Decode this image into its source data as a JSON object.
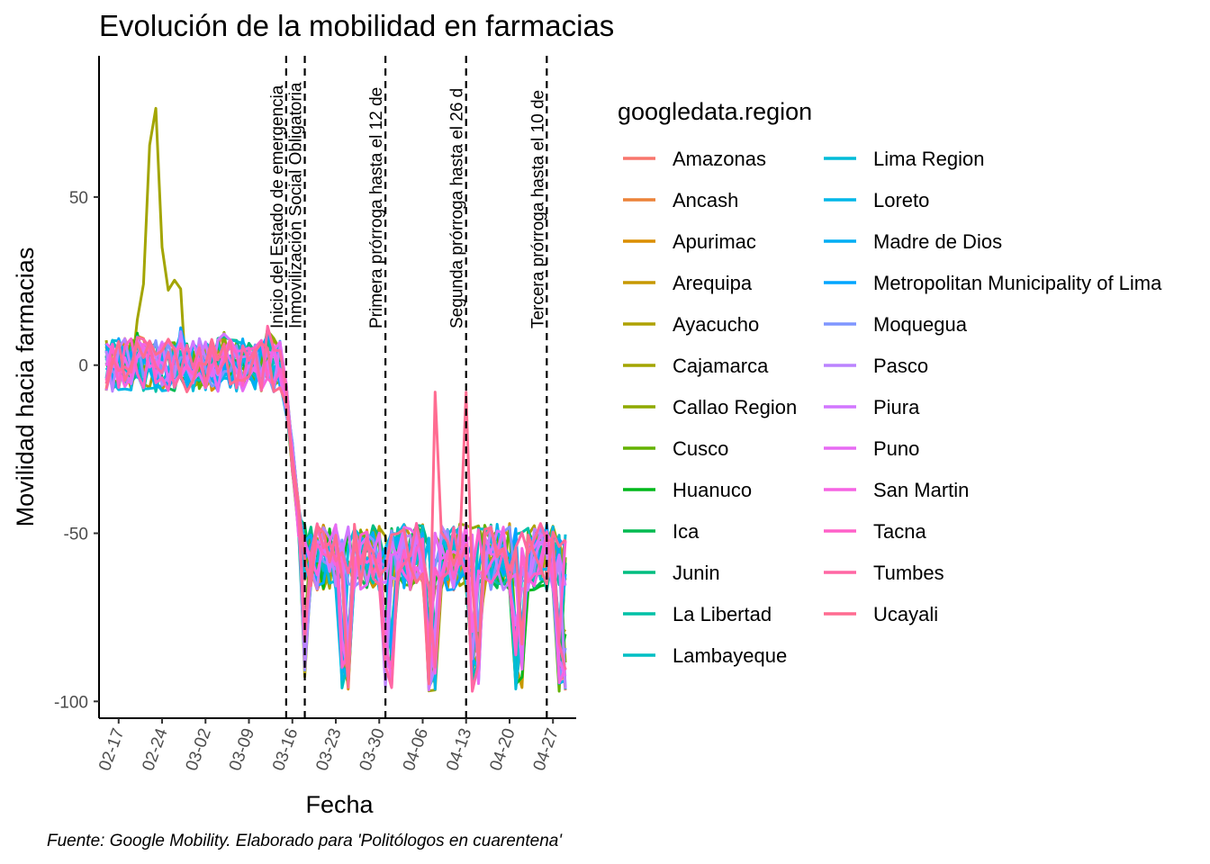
{
  "chart_data": {
    "type": "line",
    "title": "Evolución de la mobilidad en farmacias",
    "xlabel": "Fecha",
    "ylabel": "Movilidad hacia farmacias",
    "caption": "Fuente: Google Mobility. Elaborado para 'Politólogos en cuarentena'",
    "legend_title": "googledata.region",
    "legend_placement": "right",
    "grid": false,
    "x_date_range": [
      "2020-02-15",
      "2020-04-29"
    ],
    "x_ticks": [
      {
        "label": "02-17",
        "date": "2020-02-17"
      },
      {
        "label": "02-24",
        "date": "2020-02-24"
      },
      {
        "label": "03-02",
        "date": "2020-03-02"
      },
      {
        "label": "03-09",
        "date": "2020-03-09"
      },
      {
        "label": "03-16",
        "date": "2020-03-16"
      },
      {
        "label": "03-23",
        "date": "2020-03-23"
      },
      {
        "label": "03-30",
        "date": "2020-03-30"
      },
      {
        "label": "04-06",
        "date": "2020-04-06"
      },
      {
        "label": "04-13",
        "date": "2020-04-13"
      },
      {
        "label": "04-20",
        "date": "2020-04-20"
      },
      {
        "label": "04-27",
        "date": "2020-04-27"
      }
    ],
    "y_ticks": [
      50,
      0,
      -50,
      -100
    ],
    "ylim": [
      -105,
      92
    ],
    "vlines": [
      {
        "date": "2020-03-15",
        "label": "Inicio del Estado de emergencia"
      },
      {
        "date": "2020-03-18",
        "label": "Inmovilización Social Obligatoria"
      },
      {
        "date": "2020-03-31",
        "label": "Primera prórroga hasta el 12 de"
      },
      {
        "date": "2020-04-13",
        "label": "Segunda prórroga hasta el 26 d"
      },
      {
        "date": "2020-04-26",
        "label": "Tercera prórroga hasta el 10 de"
      }
    ],
    "legend_columns": 2,
    "series": [
      {
        "name": "Amazonas",
        "color": "#F8766D"
      },
      {
        "name": "Ancash",
        "color": "#EC8239"
      },
      {
        "name": "Apurimac",
        "color": "#DB8E00"
      },
      {
        "name": "Arequipa",
        "color": "#C79800"
      },
      {
        "name": "Ayacucho",
        "color": "#AEA200"
      },
      {
        "name": "Cajamarca",
        "color": "#A3A500"
      },
      {
        "name": "Callao Region",
        "color": "#8FAA00"
      },
      {
        "name": "Cusco",
        "color": "#64B200"
      },
      {
        "name": "Huanuco",
        "color": "#00B81B"
      },
      {
        "name": "Ica",
        "color": "#00BA50"
      },
      {
        "name": "Junin",
        "color": "#00BD80"
      },
      {
        "name": "La Libertad",
        "color": "#00C1A7"
      },
      {
        "name": "Lambayeque",
        "color": "#00BFC4"
      },
      {
        "name": "Lima Region",
        "color": "#00BCD8"
      },
      {
        "name": "Loreto",
        "color": "#00B7E8"
      },
      {
        "name": "Madre de Dios",
        "color": "#00AEF4"
      },
      {
        "name": "Metropolitan Municipality of Lima",
        "color": "#00A5FF"
      },
      {
        "name": "Moquegua",
        "color": "#7F96FF"
      },
      {
        "name": "Pasco",
        "color": "#BB83FF"
      },
      {
        "name": "Piura",
        "color": "#D277FF"
      },
      {
        "name": "Puno",
        "color": "#E76BF3"
      },
      {
        "name": "San Martin",
        "color": "#F564E3"
      },
      {
        "name": "Tacna",
        "color": "#FF61C9"
      },
      {
        "name": "Tumbes",
        "color": "#FF67A4"
      },
      {
        "name": "Ucayali",
        "color": "#FF6C91"
      }
    ]
  }
}
